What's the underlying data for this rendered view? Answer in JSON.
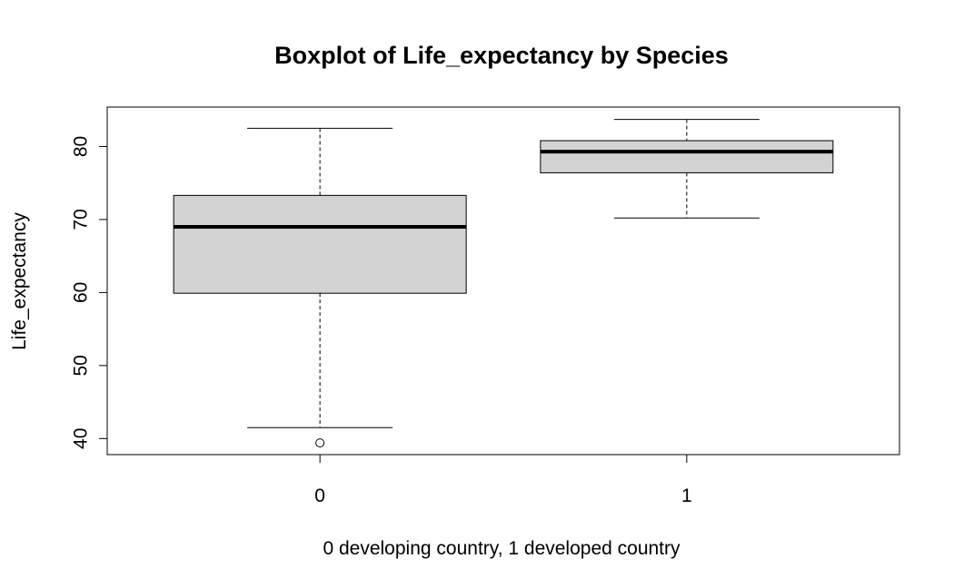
{
  "chart_data": {
    "type": "box",
    "title": "Boxplot of Life_expectancy by Species",
    "xlabel": "0 developing country, 1 developed country",
    "ylabel": "Life_expectancy",
    "categories": [
      "0",
      "1"
    ],
    "boxes": [
      {
        "category": "0",
        "whisker_low": 41.5,
        "q1": 59.9,
        "median": 69.0,
        "q3": 73.3,
        "whisker_high": 82.5,
        "outliers": [
          39.4
        ]
      },
      {
        "category": "1",
        "whisker_low": 70.2,
        "q1": 76.4,
        "median": 79.3,
        "q3": 80.8,
        "whisker_high": 83.7,
        "outliers": []
      }
    ],
    "ylim": [
      37.8,
      85.4
    ],
    "yticks": [
      40,
      50,
      60,
      70,
      80
    ],
    "box_fill": "#d3d3d3",
    "grid": false,
    "legend": "none"
  }
}
